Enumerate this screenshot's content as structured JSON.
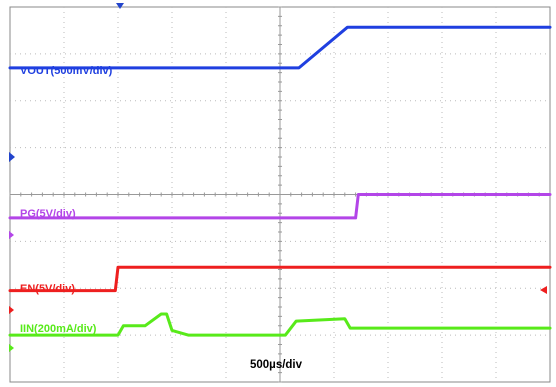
{
  "chart_data": {
    "type": "line",
    "x": {
      "divisions": 10,
      "range_div": [
        0,
        10
      ],
      "timebase_label": "500µs/div"
    },
    "y": {
      "divisions": 8,
      "range_div": [
        0,
        8
      ]
    },
    "grid": true,
    "series": [
      {
        "name": "VOUT(500mV/div)",
        "color": "#1f3fe0",
        "points": [
          [
            0,
            6.7
          ],
          [
            5.35,
            6.7
          ],
          [
            6.25,
            7.57
          ],
          [
            10,
            7.57
          ]
        ]
      },
      {
        "name": "PG(5V/div)",
        "color": "#b345e8",
        "points": [
          [
            0,
            3.5
          ],
          [
            6.4,
            3.5
          ],
          [
            6.45,
            4.0
          ],
          [
            10,
            4.0
          ]
        ]
      },
      {
        "name": "EN(5V/div)",
        "color": "#ee1f1f",
        "points": [
          [
            0,
            1.95
          ],
          [
            1.95,
            1.95
          ],
          [
            2.0,
            2.45
          ],
          [
            10,
            2.45
          ]
        ]
      },
      {
        "name": "IIN(200mA/div)",
        "color": "#58ea1a",
        "points": [
          [
            0,
            1.0
          ],
          [
            2.0,
            1.0
          ],
          [
            2.1,
            1.2
          ],
          [
            2.5,
            1.2
          ],
          [
            2.8,
            1.45
          ],
          [
            2.9,
            1.45
          ],
          [
            3.0,
            1.1
          ],
          [
            3.3,
            1.0
          ],
          [
            5.1,
            1.0
          ],
          [
            5.3,
            1.3
          ],
          [
            6.2,
            1.35
          ],
          [
            6.3,
            1.15
          ],
          [
            10,
            1.15
          ]
        ]
      }
    ]
  },
  "colors": {
    "grid": "#bbbbbb",
    "frame": "#888888",
    "trigger_marker": "#2244cc"
  },
  "labels": {
    "timebase": "500µs/div"
  }
}
